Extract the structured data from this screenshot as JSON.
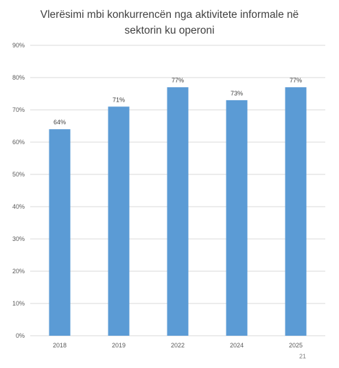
{
  "title_line1": "Vlerësimi mbi konkurrencën nga aktivitete informale në",
  "title_line2": "sektorin ku operoni",
  "page_number": "21",
  "colors": {
    "bar": "#5b9bd5",
    "grid": "#d9d9d9",
    "axis_text": "#595959"
  },
  "chart_data": {
    "type": "bar",
    "title": "Vlerësimi mbi konkurrencën nga aktivitete informale në sektorin ku operoni",
    "categories": [
      "2018",
      "2019",
      "2022",
      "2024",
      "2025"
    ],
    "values": [
      64,
      71,
      77,
      73,
      77
    ],
    "data_labels": [
      "64%",
      "71%",
      "77%",
      "73%",
      "77%"
    ],
    "y_ticks": [
      "0%",
      "10%",
      "20%",
      "30%",
      "40%",
      "50%",
      "60%",
      "70%",
      "80%",
      "90%"
    ],
    "ylim": [
      0,
      90
    ],
    "xlabel": "",
    "ylabel": "",
    "grid": true,
    "legend": "none"
  }
}
